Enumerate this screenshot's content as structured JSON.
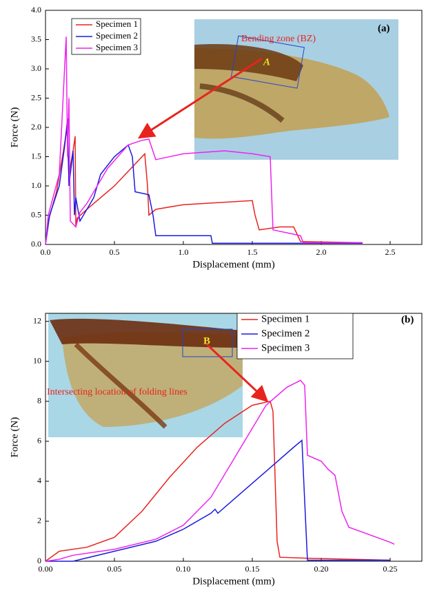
{
  "chart_data": [
    {
      "type": "line",
      "xlabel": "Displacement (mm)",
      "ylabel": "Force (N)",
      "annotations": [
        "(a)",
        "Bending zone (BZ)",
        "A"
      ],
      "xlim": [
        0,
        2.73
      ],
      "ylim": [
        0,
        4
      ],
      "xticks": [
        {
          "value": 0,
          "label": "0.0"
        },
        {
          "value": 0.5,
          "label": "0.5"
        },
        {
          "value": 1,
          "label": "1.0"
        },
        {
          "value": 1.5,
          "label": "1.5"
        },
        {
          "value": 2,
          "label": "2.0"
        },
        {
          "value": 2.5,
          "label": "2.5"
        }
      ],
      "yticks": [
        {
          "value": 0,
          "label": "0.0"
        },
        {
          "value": 0.5,
          "label": "0.5"
        },
        {
          "value": 1,
          "label": "1.0"
        },
        {
          "value": 1.5,
          "label": "1.5"
        },
        {
          "value": 2,
          "label": "2.0"
        },
        {
          "value": 2.5,
          "label": "2.5"
        },
        {
          "value": 3,
          "label": "3.0"
        },
        {
          "value": 3.5,
          "label": "3.5"
        },
        {
          "value": 4,
          "label": "4.0"
        }
      ],
      "series": [
        {
          "name": "Specimen 1",
          "color": "#e8231e",
          "x": [
            0,
            0.02,
            0.08,
            0.13,
            0.155,
            0.17,
            0.2,
            0.215,
            0.22,
            0.23,
            0.3,
            0.5,
            0.72,
            0.74,
            0.75,
            0.8,
            1.0,
            1.5,
            1.52,
            1.55,
            1.7,
            1.8,
            1.82,
            1.85,
            2.3
          ],
          "values": [
            0,
            0.4,
            0.9,
            1.6,
            1.98,
            1.2,
            1.6,
            1.85,
            0.3,
            0.45,
            0.6,
            1.0,
            1.55,
            1.0,
            0.5,
            0.6,
            0.68,
            0.75,
            0.5,
            0.25,
            0.3,
            0.3,
            0.2,
            0.05,
            0.03
          ]
        },
        {
          "name": "Specimen 2",
          "color": "#1a1adf",
          "x": [
            0,
            0.03,
            0.1,
            0.14,
            0.16,
            0.17,
            0.2,
            0.21,
            0.22,
            0.25,
            0.35,
            0.4,
            0.5,
            0.6,
            0.63,
            0.65,
            0.75,
            0.78,
            0.8,
            1.0,
            1.2,
            1.21,
            1.5,
            2.0,
            2.3
          ],
          "values": [
            0,
            0.5,
            1.0,
            1.7,
            2.15,
            1.0,
            1.6,
            0.5,
            0.8,
            0.4,
            0.8,
            1.2,
            1.5,
            1.7,
            1.5,
            0.9,
            0.85,
            0.5,
            0.15,
            0.15,
            0.15,
            0.02,
            0.02,
            0.02,
            0.02
          ]
        },
        {
          "name": "Specimen 3",
          "color": "#ee22ee",
          "x": [
            0,
            0.02,
            0.1,
            0.15,
            0.16,
            0.17,
            0.18,
            0.2,
            0.22,
            0.25,
            0.3,
            0.45,
            0.6,
            0.7,
            0.75,
            0.8,
            1.0,
            1.3,
            1.5,
            1.63,
            1.65,
            1.75,
            1.85,
            1.87,
            2.0,
            2.3
          ],
          "values": [
            0,
            0.5,
            1.2,
            3.55,
            1.5,
            2.5,
            0.4,
            0.35,
            0.3,
            0.55,
            0.7,
            1.3,
            1.7,
            1.78,
            1.8,
            1.45,
            1.55,
            1.6,
            1.55,
            1.5,
            0.25,
            0.2,
            0.15,
            0.03,
            0.03,
            0.03
          ]
        }
      ]
    },
    {
      "type": "line",
      "xlabel": "Displacement (mm)",
      "ylabel": "Force (N)",
      "annotations": [
        "(b)",
        "Intersecting location of folding lines",
        "B"
      ],
      "xlim": [
        0,
        0.273
      ],
      "ylim": [
        0,
        12.4
      ],
      "xticks": [
        {
          "value": 0,
          "label": "0.00"
        },
        {
          "value": 0.05,
          "label": "0.05"
        },
        {
          "value": 0.1,
          "label": "0.10"
        },
        {
          "value": 0.15,
          "label": "0.15"
        },
        {
          "value": 0.2,
          "label": "0.20"
        },
        {
          "value": 0.25,
          "label": "0.25"
        }
      ],
      "yticks": [
        0,
        2,
        4,
        6,
        8,
        10,
        12
      ],
      "series": [
        {
          "name": "Specimen 1",
          "color": "#e8231e",
          "x": [
            0,
            0.01,
            0.03,
            0.05,
            0.07,
            0.09,
            0.11,
            0.13,
            0.15,
            0.163,
            0.165,
            0.168,
            0.17,
            0.19,
            0.25
          ],
          "values": [
            0,
            0.5,
            0.7,
            1.2,
            2.5,
            4.2,
            5.7,
            6.9,
            7.8,
            8.0,
            7.5,
            1.0,
            0.2,
            0.15,
            0.05
          ]
        },
        {
          "name": "Specimen 2",
          "color": "#1a1adf",
          "x": [
            0,
            0.02,
            0.05,
            0.08,
            0.1,
            0.12,
            0.123,
            0.125,
            0.14,
            0.16,
            0.18,
            0.186,
            0.188,
            0.19,
            0.25
          ],
          "values": [
            0,
            0,
            0.5,
            1.0,
            1.6,
            2.4,
            2.6,
            2.4,
            3.3,
            4.5,
            5.7,
            6.05,
            3,
            0.05,
            0.05
          ]
        },
        {
          "name": "Specimen 3",
          "color": "#ee22ee",
          "x": [
            0,
            0.01,
            0.02,
            0.05,
            0.08,
            0.1,
            0.12,
            0.14,
            0.16,
            0.175,
            0.185,
            0.188,
            0.19,
            0.2,
            0.205,
            0.21,
            0.215,
            0.22,
            0.25,
            0.253
          ],
          "values": [
            0,
            0.1,
            0.3,
            0.6,
            1.1,
            1.8,
            3.2,
            5.5,
            7.8,
            8.7,
            9.05,
            8.8,
            5.3,
            5.0,
            4.6,
            4.3,
            2.5,
            1.7,
            0.95,
            0.85
          ]
        }
      ]
    }
  ]
}
